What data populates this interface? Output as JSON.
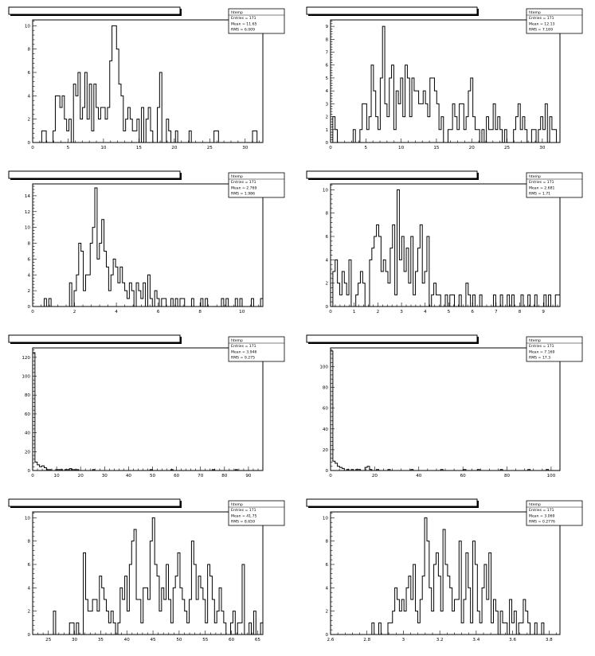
{
  "chart_data": [
    {
      "type": "histogram",
      "xlim": [
        0,
        32.5
      ],
      "ylim": [
        0,
        10.5
      ],
      "xticks": [
        0,
        5,
        10,
        15,
        20,
        25,
        30
      ],
      "yticks": [
        0,
        2,
        4,
        6,
        8,
        10
      ],
      "stats": {
        "name": "htemp",
        "entries": "Entries = 171",
        "mean": "Mean = 11.65",
        "rms": "RMS = 6.009"
      },
      "bin_width": 0.32,
      "counts": [
        0,
        0,
        0,
        0,
        1,
        1,
        0,
        0,
        0,
        1,
        4,
        4,
        3,
        4,
        2,
        1,
        2,
        0,
        5,
        4,
        6,
        2,
        3,
        6,
        2,
        5,
        1,
        5,
        3,
        2,
        3,
        3,
        2,
        3,
        7,
        10,
        10,
        8,
        5,
        4,
        1,
        2,
        3,
        2,
        1,
        1,
        2,
        0,
        3,
        0,
        2,
        3,
        1,
        0,
        0,
        3,
        6,
        0,
        0,
        2,
        1,
        0,
        0,
        1,
        0,
        0,
        0,
        0,
        0,
        1,
        0,
        0,
        0,
        0,
        0,
        0,
        0,
        0,
        0,
        0,
        1,
        1,
        0,
        0,
        0,
        0,
        0,
        0,
        0,
        0,
        0,
        0,
        0,
        0,
        0,
        0,
        0,
        1,
        1,
        0,
        0
      ]
    },
    {
      "type": "histogram",
      "xlim": [
        0,
        32.5
      ],
      "ylim": [
        0,
        9.5
      ],
      "xticks": [
        0,
        5,
        10,
        15,
        20,
        25,
        30
      ],
      "yticks": [
        0,
        1,
        2,
        3,
        4,
        5,
        6,
        7,
        8,
        9
      ],
      "stats": {
        "name": "htemp",
        "entries": "Entries = 171",
        "mean": "Mean = 12.13",
        "rms": "RMS = 7.169"
      },
      "bin_width": 0.32,
      "counts": [
        0,
        2,
        1,
        0,
        0,
        0,
        0,
        0,
        0,
        0,
        1,
        0,
        0,
        1,
        3,
        3,
        1,
        2,
        6,
        4,
        2,
        1,
        5,
        9,
        3,
        2,
        5,
        6,
        1,
        4,
        3,
        5,
        2,
        6,
        5,
        2,
        5,
        4,
        4,
        3,
        3,
        4,
        3,
        2,
        5,
        5,
        4,
        3,
        1,
        2,
        0,
        0,
        1,
        1,
        3,
        2,
        1,
        3,
        3,
        1,
        2,
        4,
        5,
        2,
        1,
        1,
        0,
        1,
        0,
        2,
        1,
        1,
        3,
        1,
        2,
        1,
        0,
        1,
        0,
        0,
        0,
        1,
        2,
        3,
        1,
        2,
        1,
        0,
        0,
        1,
        1,
        0,
        1,
        2,
        1,
        3,
        0,
        2,
        1,
        1,
        0
      ]
    },
    {
      "type": "histogram",
      "xlim": [
        0,
        11
      ],
      "ylim": [
        0,
        15.5
      ],
      "xticks": [
        0,
        2,
        4,
        6,
        8,
        10
      ],
      "yticks": [
        0,
        2,
        4,
        6,
        8,
        10,
        12,
        14
      ],
      "stats": {
        "name": "htemp",
        "entries": "Entries = 171",
        "mean": "Mean = 2.769",
        "rms": "RMS = 1.986"
      },
      "bin_width": 0.11,
      "counts": [
        0,
        0,
        0,
        0,
        0,
        1,
        0,
        1,
        0,
        0,
        0,
        0,
        0,
        0,
        0,
        0,
        3,
        0,
        2,
        4,
        8,
        7,
        2,
        4,
        4,
        8,
        10,
        15,
        6,
        8,
        11,
        7,
        5,
        2,
        4,
        6,
        5,
        3,
        5,
        3,
        2,
        1,
        3,
        2,
        0,
        3,
        2,
        1,
        3,
        0,
        4,
        1,
        0,
        2,
        1,
        0,
        1,
        1,
        0,
        0,
        1,
        0,
        1,
        0,
        1,
        1,
        0,
        0,
        0,
        1,
        0,
        0,
        0,
        1,
        0,
        1,
        0,
        0,
        0,
        0,
        0,
        0,
        1,
        0,
        1,
        0,
        0,
        0,
        1,
        0,
        1,
        0,
        0,
        0,
        0,
        1,
        0,
        0,
        0,
        1,
        0
      ]
    },
    {
      "type": "histogram",
      "xlim": [
        0,
        9.7
      ],
      "ylim": [
        0,
        10.5
      ],
      "xticks": [
        0,
        1,
        2,
        3,
        4,
        5,
        6,
        7,
        8,
        9
      ],
      "yticks": [
        0,
        2,
        4,
        6,
        8,
        10
      ],
      "stats": {
        "name": "htemp",
        "entries": "Entries = 171",
        "mean": "Mean = 2.681",
        "rms": "RMS = 1.71"
      },
      "bin_width": 0.097,
      "counts": [
        0,
        3,
        4,
        2,
        1,
        3,
        2,
        1,
        4,
        0,
        0,
        1,
        2,
        3,
        2,
        0,
        0,
        4,
        5,
        6,
        7,
        6,
        3,
        4,
        3,
        2,
        5,
        7,
        1,
        10,
        4,
        6,
        3,
        5,
        2,
        6,
        1,
        3,
        5,
        7,
        2,
        3,
        6,
        0,
        1,
        2,
        1,
        1,
        0,
        0,
        1,
        0,
        1,
        1,
        0,
        0,
        1,
        0,
        0,
        2,
        1,
        0,
        1,
        0,
        0,
        1,
        0,
        0,
        0,
        0,
        0,
        1,
        0,
        0,
        1,
        0,
        0,
        1,
        0,
        1,
        0,
        0,
        0,
        1,
        0,
        0,
        1,
        0,
        0,
        1,
        0,
        0,
        0,
        1,
        0,
        1,
        0,
        0,
        1,
        1,
        0
      ]
    },
    {
      "type": "histogram",
      "xlim": [
        0,
        96
      ],
      "ylim": [
        0,
        130
      ],
      "xticks": [
        0,
        10,
        20,
        30,
        40,
        50,
        60,
        70,
        80,
        90
      ],
      "yticks": [
        0,
        20,
        40,
        60,
        80,
        100,
        120
      ],
      "stats": {
        "name": "htemp",
        "entries": "Entries = 171",
        "mean": "Mean = 3.946",
        "rms": "RMS = 9.275"
      },
      "bin_width": 0.96,
      "counts": [
        125,
        9,
        6,
        4,
        5,
        3,
        1,
        1,
        0,
        0,
        1,
        1,
        1,
        0,
        1,
        1,
        2,
        1,
        1,
        1,
        0,
        0,
        0,
        0,
        0,
        0,
        1,
        0,
        0,
        0,
        0,
        0,
        0,
        0,
        0,
        0,
        0,
        0,
        0,
        0,
        0,
        0,
        0,
        0,
        0,
        0,
        0,
        0,
        0,
        0,
        0,
        1,
        0,
        0,
        0,
        0,
        0,
        0,
        0,
        0,
        1,
        0,
        0,
        0,
        0,
        0,
        0,
        0,
        0,
        0,
        0,
        0,
        0,
        0,
        0,
        0,
        0,
        0,
        1,
        0,
        0,
        0,
        0,
        0,
        0,
        0,
        0,
        0,
        1,
        0,
        0,
        0,
        0,
        0,
        0,
        0,
        0,
        0,
        0,
        0,
        0
      ]
    },
    {
      "type": "histogram",
      "xlim": [
        0,
        104
      ],
      "ylim": [
        0,
        118
      ],
      "xticks": [
        0,
        20,
        40,
        60,
        80,
        100
      ],
      "yticks": [
        0,
        20,
        40,
        60,
        80,
        100
      ],
      "stats": {
        "name": "htemp",
        "entries": "Entries = 171",
        "mean": "Mean = 7.169",
        "rms": "RMS = 17.3"
      },
      "bin_width": 1.04,
      "counts": [
        115,
        9,
        7,
        4,
        3,
        2,
        0,
        1,
        0,
        1,
        0,
        1,
        1,
        0,
        0,
        3,
        4,
        1,
        0,
        0,
        1,
        0,
        0,
        0,
        0,
        1,
        0,
        0,
        0,
        0,
        0,
        0,
        0,
        0,
        0,
        1,
        0,
        0,
        0,
        0,
        0,
        0,
        0,
        0,
        0,
        0,
        0,
        0,
        1,
        0,
        0,
        0,
        0,
        0,
        0,
        0,
        0,
        0,
        1,
        0,
        0,
        0,
        0,
        0,
        1,
        0,
        0,
        0,
        0,
        0,
        0,
        0,
        0,
        0,
        1,
        0,
        0,
        0,
        0,
        0,
        0,
        0,
        0,
        0,
        0,
        0,
        1,
        0,
        0,
        0,
        0,
        0,
        0,
        0,
        1,
        0,
        0,
        0,
        0,
        0,
        0
      ]
    },
    {
      "type": "histogram",
      "xlim": [
        22,
        66
      ],
      "ylim": [
        0,
        10.5
      ],
      "xticks": [
        25,
        30,
        35,
        40,
        45,
        50,
        55,
        60,
        65
      ],
      "yticks": [
        0,
        2,
        4,
        6,
        8,
        10
      ],
      "stats": {
        "name": "htemp",
        "entries": "Entries = 171",
        "mean": "Mean = 41.75",
        "rms": "RMS = 8.659"
      },
      "bin_width": 0.44,
      "counts": [
        0,
        0,
        0,
        0,
        0,
        0,
        0,
        0,
        0,
        2,
        0,
        0,
        0,
        0,
        0,
        0,
        1,
        1,
        0,
        1,
        0,
        0,
        7,
        3,
        2,
        2,
        3,
        3,
        2,
        5,
        4,
        3,
        2,
        1,
        2,
        1,
        0,
        1,
        4,
        3,
        5,
        2,
        6,
        8,
        9,
        3,
        3,
        1,
        4,
        4,
        3,
        8,
        10,
        6,
        5,
        2,
        4,
        3,
        6,
        3,
        1,
        4,
        5,
        7,
        4,
        3,
        2,
        1,
        3,
        8,
        6,
        3,
        5,
        4,
        3,
        1,
        6,
        5,
        3,
        1,
        2,
        4,
        2,
        1,
        0,
        0,
        1,
        2,
        0,
        1,
        1,
        6,
        0,
        0,
        1,
        0,
        2,
        0,
        0,
        1,
        0
      ]
    },
    {
      "type": "histogram",
      "xlim": [
        2.6,
        3.86
      ],
      "ylim": [
        0,
        10.5
      ],
      "xticks": [
        2.6,
        2.8,
        3,
        3.2,
        3.4,
        3.6,
        3.8
      ],
      "yticks": [
        0,
        2,
        4,
        6,
        8,
        10
      ],
      "stats": {
        "name": "htemp",
        "entries": "Entries = 171",
        "mean": "Mean = 3.069",
        "rms": "RMS = 0.2776"
      },
      "bin_width": 0.0126,
      "counts": [
        0,
        0,
        0,
        0,
        0,
        0,
        0,
        0,
        0,
        0,
        0,
        0,
        0,
        0,
        0,
        0,
        0,
        0,
        1,
        0,
        0,
        1,
        0,
        0,
        0,
        1,
        1,
        2,
        4,
        3,
        2,
        3,
        2,
        4,
        5,
        3,
        6,
        2,
        1,
        3,
        5,
        10,
        8,
        4,
        2,
        6,
        7,
        5,
        2,
        9,
        6,
        5,
        4,
        2,
        3,
        3,
        8,
        1,
        3,
        7,
        4,
        1,
        8,
        6,
        2,
        1,
        4,
        6,
        3,
        7,
        1,
        3,
        2,
        0,
        2,
        1,
        1,
        0,
        3,
        1,
        2,
        0,
        1,
        1,
        3,
        2,
        1,
        0,
        0,
        1,
        0,
        0,
        1,
        0,
        0,
        0,
        0,
        0,
        0,
        0,
        0
      ]
    }
  ]
}
